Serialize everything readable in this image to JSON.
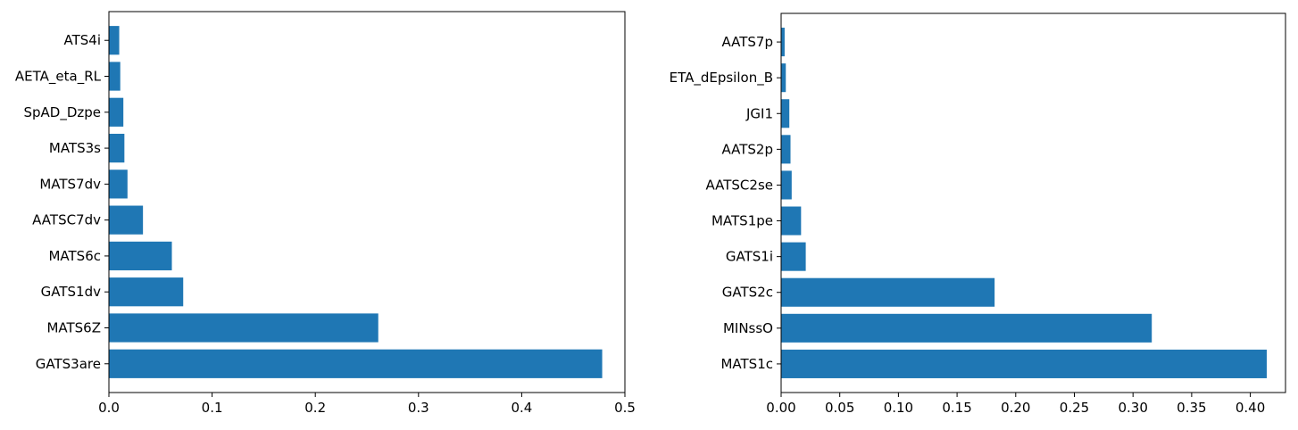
{
  "chart_data": [
    {
      "type": "bar",
      "orientation": "horizontal",
      "categories": [
        "GATS3are",
        "MATS6Z",
        "GATS1dv",
        "MATS6c",
        "AATSC7dv",
        "MATS7dv",
        "MATS3s",
        "SpAD_Dzpe",
        "AETA_eta_RL",
        "ATS4i"
      ],
      "values": [
        0.478,
        0.261,
        0.072,
        0.061,
        0.033,
        0.018,
        0.015,
        0.014,
        0.011,
        0.01
      ],
      "xlim": [
        0.0,
        0.5
      ],
      "xticks": [
        "0.0",
        "0.1",
        "0.2",
        "0.3",
        "0.4",
        "0.5"
      ],
      "grid": false,
      "bar_color": "#1f77b4"
    },
    {
      "type": "bar",
      "orientation": "horizontal",
      "categories": [
        "MATS1c",
        "MINssO",
        "GATS2c",
        "GATS1i",
        "MATS1pe",
        "AATSC2se",
        "AATS2p",
        "JGI1",
        "ETA_dEpsilon_B",
        "AATS7p"
      ],
      "values": [
        0.414,
        0.316,
        0.182,
        0.021,
        0.017,
        0.009,
        0.008,
        0.007,
        0.004,
        0.003
      ],
      "xlim": [
        0.0,
        0.43
      ],
      "xticks": [
        "0.00",
        "0.05",
        "0.10",
        "0.15",
        "0.20",
        "0.25",
        "0.30",
        "0.35",
        "0.40"
      ],
      "grid": false,
      "bar_color": "#1f77b4"
    }
  ]
}
